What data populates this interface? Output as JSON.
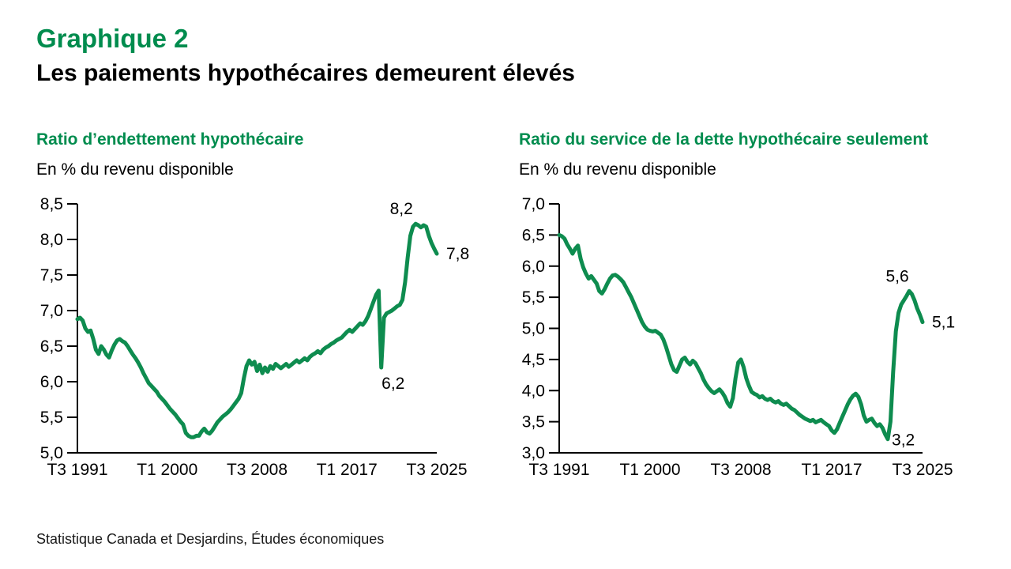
{
  "page": {
    "title": "Graphique 2",
    "subtitle": "Les paiements hypothécaires demeurent élevés",
    "source": "Statistique Canada et Desjardins, Études économiques",
    "accent_color": "#008C4E",
    "line_color": "#0E8C4F",
    "axis_color": "#000000"
  },
  "chart_data": [
    {
      "type": "line",
      "title": "Ratio d’endettement hypothécaire",
      "subtitle": "En % du revenu disponible",
      "x_start": "T3 1991",
      "x_end": "T3 2025",
      "frequency": "quarterly",
      "x_tick_labels": [
        "T3 1991",
        "T1 2000",
        "T3 2008",
        "T1 2017",
        "T3 2025"
      ],
      "ylim": [
        5.0,
        8.5
      ],
      "y_step": 0.5,
      "decimal_comma": true,
      "grid": false,
      "legend": "none",
      "values": [
        6.88,
        6.9,
        6.86,
        6.75,
        6.7,
        6.72,
        6.6,
        6.45,
        6.39,
        6.5,
        6.45,
        6.38,
        6.34,
        6.44,
        6.52,
        6.58,
        6.6,
        6.57,
        6.55,
        6.5,
        6.44,
        6.38,
        6.33,
        6.27,
        6.2,
        6.12,
        6.05,
        5.98,
        5.94,
        5.9,
        5.86,
        5.8,
        5.76,
        5.72,
        5.67,
        5.62,
        5.58,
        5.54,
        5.49,
        5.44,
        5.4,
        5.28,
        5.24,
        5.22,
        5.22,
        5.24,
        5.24,
        5.3,
        5.34,
        5.29,
        5.27,
        5.31,
        5.37,
        5.43,
        5.47,
        5.51,
        5.54,
        5.57,
        5.61,
        5.66,
        5.71,
        5.76,
        5.84,
        6.05,
        6.22,
        6.3,
        6.24,
        6.28,
        6.15,
        6.24,
        6.12,
        6.2,
        6.14,
        6.22,
        6.18,
        6.25,
        6.22,
        6.19,
        6.22,
        6.25,
        6.21,
        6.24,
        6.27,
        6.3,
        6.27,
        6.3,
        6.33,
        6.3,
        6.35,
        6.38,
        6.4,
        6.43,
        6.4,
        6.45,
        6.48,
        6.5,
        6.53,
        6.55,
        6.58,
        6.6,
        6.62,
        6.66,
        6.7,
        6.73,
        6.7,
        6.74,
        6.78,
        6.82,
        6.8,
        6.85,
        6.92,
        7.02,
        7.12,
        7.22,
        7.28,
        6.2,
        6.9,
        6.96,
        6.98,
        7.0,
        7.03,
        7.06,
        7.08,
        7.15,
        7.4,
        7.75,
        8.05,
        8.18,
        8.22,
        8.2,
        8.17,
        8.2,
        8.18,
        8.05,
        7.95,
        7.87,
        7.8
      ],
      "annotations": [
        {
          "text": "8,2",
          "index": 128,
          "position": "above",
          "dx": -18
        },
        {
          "text": "7,8",
          "index": 136,
          "position": "right",
          "dx": 0
        },
        {
          "text": "6,2",
          "index": 115,
          "position": "below",
          "dx": 15
        }
      ]
    },
    {
      "type": "line",
      "title": "Ratio du service de la dette hypothécaire seulement",
      "subtitle": "En % du revenu disponible",
      "x_start": "T3 1991",
      "x_end": "T3 2025",
      "frequency": "quarterly",
      "x_tick_labels": [
        "T3 1991",
        "T1 2000",
        "T3 2008",
        "T1 2017",
        "T3 2025"
      ],
      "ylim": [
        3.0,
        7.0
      ],
      "y_step": 0.5,
      "decimal_comma": true,
      "grid": false,
      "legend": "none",
      "values": [
        6.5,
        6.48,
        6.44,
        6.35,
        6.28,
        6.2,
        6.28,
        6.33,
        6.12,
        5.98,
        5.88,
        5.8,
        5.84,
        5.78,
        5.72,
        5.6,
        5.56,
        5.63,
        5.72,
        5.8,
        5.85,
        5.86,
        5.83,
        5.79,
        5.74,
        5.66,
        5.58,
        5.5,
        5.4,
        5.3,
        5.2,
        5.1,
        5.03,
        4.98,
        4.96,
        4.95,
        4.96,
        4.93,
        4.9,
        4.82,
        4.7,
        4.56,
        4.42,
        4.33,
        4.3,
        4.4,
        4.5,
        4.53,
        4.46,
        4.42,
        4.48,
        4.44,
        4.36,
        4.28,
        4.18,
        4.1,
        4.04,
        3.99,
        3.96,
        3.99,
        4.02,
        3.97,
        3.9,
        3.8,
        3.74,
        3.88,
        4.2,
        4.45,
        4.5,
        4.38,
        4.2,
        4.08,
        3.98,
        3.95,
        3.93,
        3.89,
        3.91,
        3.87,
        3.85,
        3.87,
        3.83,
        3.81,
        3.83,
        3.79,
        3.77,
        3.79,
        3.75,
        3.71,
        3.69,
        3.65,
        3.61,
        3.58,
        3.55,
        3.53,
        3.51,
        3.53,
        3.49,
        3.51,
        3.53,
        3.49,
        3.46,
        3.43,
        3.36,
        3.32,
        3.38,
        3.48,
        3.58,
        3.68,
        3.78,
        3.86,
        3.92,
        3.95,
        3.9,
        3.78,
        3.6,
        3.5,
        3.53,
        3.55,
        3.48,
        3.43,
        3.46,
        3.4,
        3.3,
        3.22,
        3.5,
        4.3,
        4.95,
        5.25,
        5.38,
        5.45,
        5.52,
        5.6,
        5.55,
        5.45,
        5.32,
        5.22,
        5.1
      ],
      "annotations": [
        {
          "text": "5,6",
          "index": 131,
          "position": "above",
          "dx": -15
        },
        {
          "text": "5,1",
          "index": 136,
          "position": "right",
          "dx": 0
        },
        {
          "text": "3,2",
          "index": 123,
          "position": "below-right",
          "dx": 5
        }
      ]
    }
  ]
}
